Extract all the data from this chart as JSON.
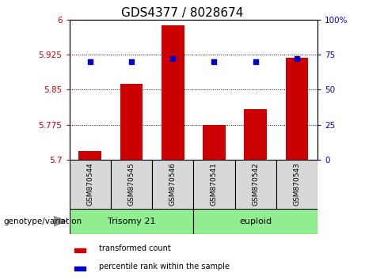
{
  "title": "GDS4377 / 8028674",
  "categories": [
    "GSM870544",
    "GSM870545",
    "GSM870546",
    "GSM870541",
    "GSM870542",
    "GSM870543"
  ],
  "bar_values": [
    5.718,
    5.862,
    5.988,
    5.775,
    5.808,
    5.918
  ],
  "percentile_values": [
    70,
    70,
    72,
    70,
    70,
    72
  ],
  "ylim_left": [
    5.7,
    6.0
  ],
  "ylim_right": [
    0,
    100
  ],
  "yticks_left": [
    5.7,
    5.775,
    5.85,
    5.925,
    6.0
  ],
  "ytick_labels_left": [
    "5.7",
    "5.775",
    "5.85",
    "5.925",
    "6"
  ],
  "yticks_right": [
    0,
    25,
    50,
    75,
    100
  ],
  "ytick_labels_right": [
    "0",
    "25",
    "50",
    "75",
    "100%"
  ],
  "bar_color": "#cc0000",
  "dot_color": "#0000cc",
  "group1_label": "Trisomy 21",
  "group2_label": "euploid",
  "group1_indices": [
    0,
    1,
    2
  ],
  "group2_indices": [
    3,
    4,
    5
  ],
  "group_color": "#90ee90",
  "group_label_text": "genotype/variation",
  "legend_bar_label": "transformed count",
  "legend_dot_label": "percentile rank within the sample",
  "title_fontsize": 11,
  "tick_fontsize": 7.5,
  "label_fontsize": 7,
  "axis_color_left": "#cc0000",
  "axis_color_right": "#0000cc",
  "sample_box_color": "#d8d8d8",
  "plot_bg": "#ffffff"
}
